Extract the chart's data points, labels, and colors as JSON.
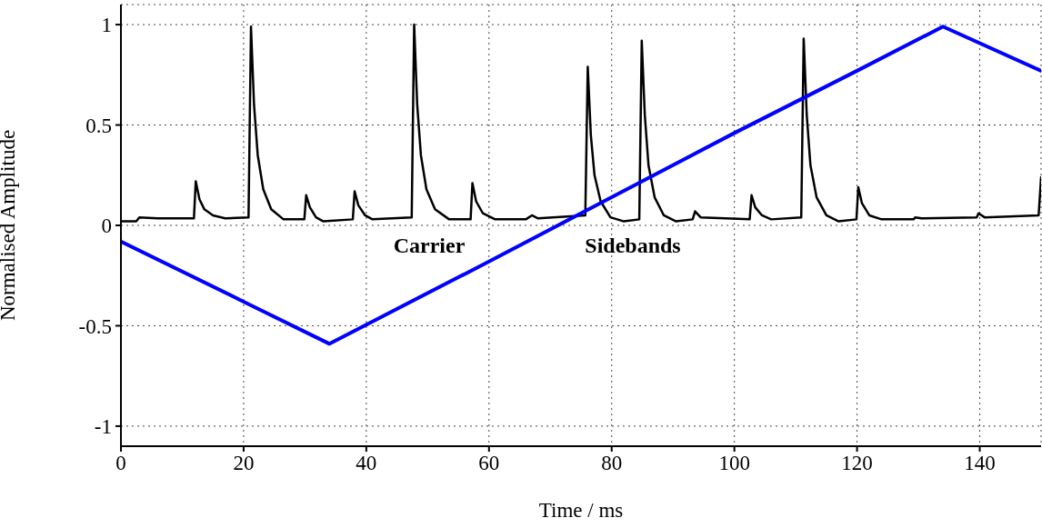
{
  "chart_data": {
    "type": "line",
    "xlabel": "Time / ms",
    "ylabel": "Normalised Amplitude",
    "xlim": [
      0,
      150
    ],
    "xticks": [
      0,
      20,
      40,
      60,
      80,
      100,
      120,
      140
    ],
    "ylim": [
      -1.1,
      1.1
    ],
    "yticks": [
      -1,
      -0.5,
      0,
      0.5,
      1
    ],
    "grid": true,
    "marker": "none",
    "line_style": "solid",
    "annotations": [
      "Carrier",
      "Sidebands"
    ],
    "series": [
      {
        "color": "#000000",
        "x": [
          0,
          2.5,
          3,
          6,
          11.9,
          12.2,
          12.8,
          13.6,
          15,
          17,
          20.8,
          21.2,
          21.7,
          22.3,
          23.2,
          24.5,
          26.5,
          29.9,
          30.2,
          30.8,
          31.8,
          33,
          37.8,
          38.1,
          38.7,
          39.8,
          41,
          47.4,
          47.8,
          48.3,
          48.9,
          49.8,
          51.2,
          53.5,
          57,
          57.3,
          57.9,
          59,
          61,
          66,
          67,
          68,
          75.7,
          76.1,
          76.6,
          77.2,
          78.2,
          79.8,
          82,
          84.5,
          84.9,
          85.4,
          86,
          87,
          88.5,
          90.5,
          93.2,
          93.6,
          94.5,
          102.5,
          102.8,
          103.4,
          104.5,
          106,
          110.9,
          111.3,
          111.8,
          112.4,
          113.4,
          115,
          117,
          119.9,
          120.2,
          120.8,
          122,
          124,
          129.2,
          129.5,
          130.5,
          139.5,
          139.8,
          140.8,
          149.6,
          150
        ],
        "values": [
          0.02,
          0.02,
          0.04,
          0.035,
          0.035,
          0.22,
          0.13,
          0.08,
          0.05,
          0.035,
          0.04,
          0.99,
          0.6,
          0.35,
          0.18,
          0.08,
          0.03,
          0.03,
          0.15,
          0.09,
          0.04,
          0.02,
          0.03,
          0.17,
          0.1,
          0.05,
          0.03,
          0.04,
          1.0,
          0.6,
          0.35,
          0.18,
          0.08,
          0.03,
          0.03,
          0.21,
          0.12,
          0.06,
          0.03,
          0.03,
          0.05,
          0.035,
          0.05,
          0.79,
          0.45,
          0.25,
          0.12,
          0.04,
          0.02,
          0.03,
          0.92,
          0.55,
          0.3,
          0.14,
          0.05,
          0.02,
          0.03,
          0.07,
          0.04,
          0.03,
          0.15,
          0.09,
          0.05,
          0.03,
          0.04,
          0.93,
          0.55,
          0.3,
          0.14,
          0.05,
          0.02,
          0.03,
          0.19,
          0.11,
          0.05,
          0.03,
          0.03,
          0.04,
          0.035,
          0.04,
          0.06,
          0.04,
          0.05,
          0.24
        ]
      },
      {
        "color": "#0000ff",
        "x": [
          0,
          20,
          34,
          60,
          80,
          100,
          120,
          134,
          150
        ],
        "values": [
          -0.08,
          -0.38,
          -0.59,
          -0.18,
          0.14,
          0.46,
          0.77,
          0.99,
          0.77
        ]
      }
    ]
  }
}
